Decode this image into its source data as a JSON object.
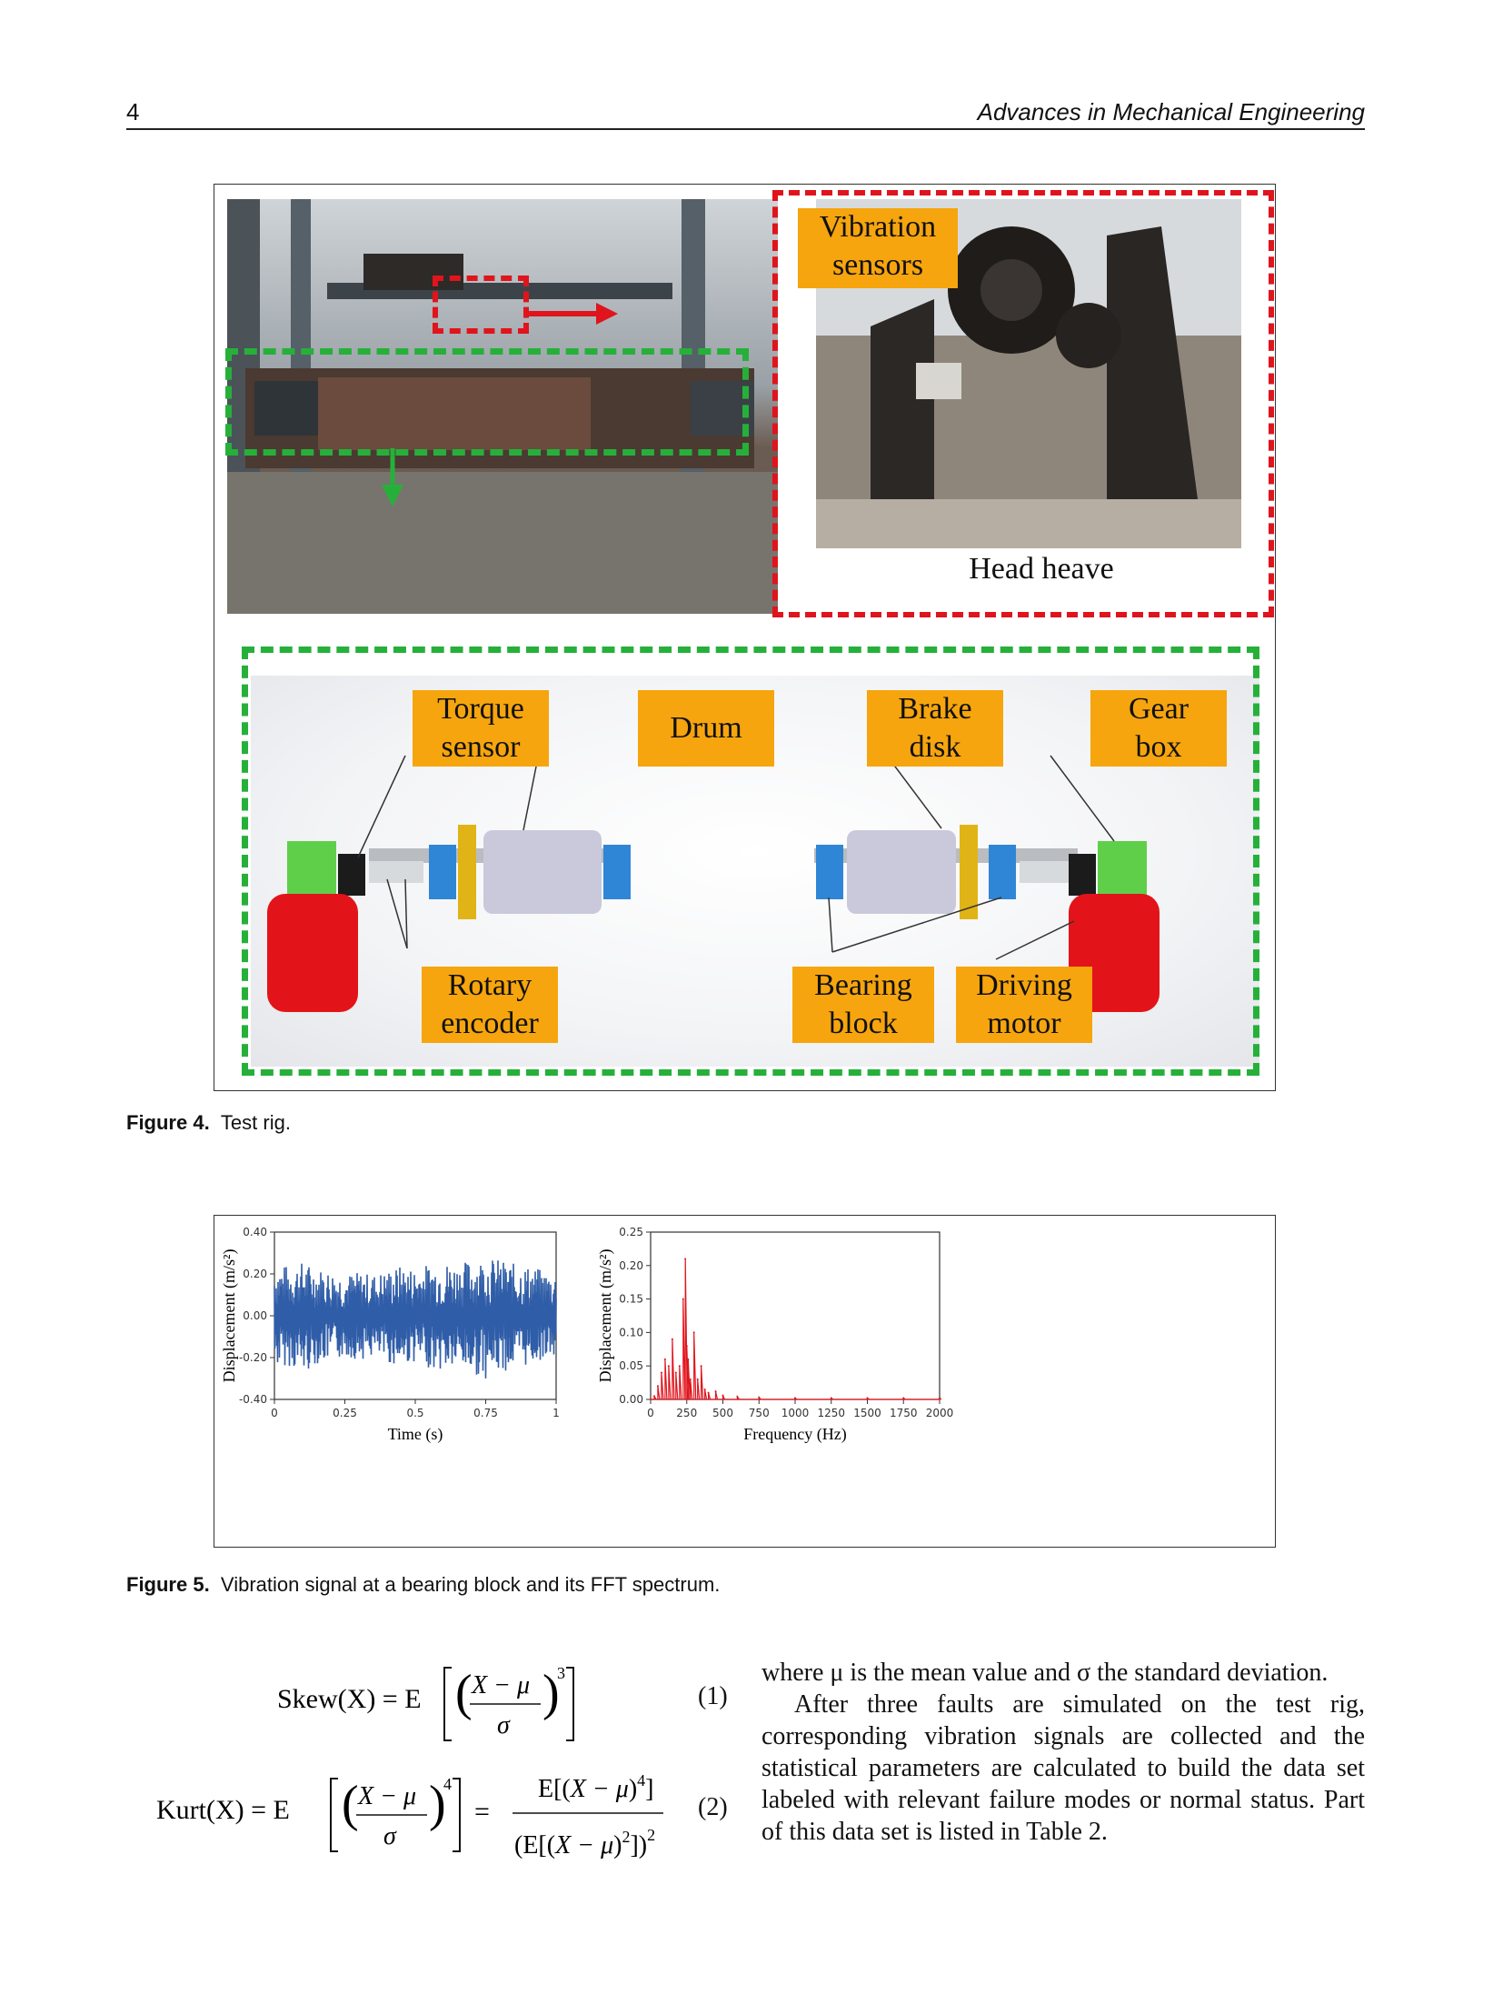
{
  "header": {
    "page_number": "4",
    "journal": "Advances in Mechanical Engineering"
  },
  "figure4": {
    "labels": {
      "vibration_sensors_1": "Vibration",
      "vibration_sensors_2": "sensors",
      "head_heave": "Head heave",
      "torque_sensor_1": "Torque",
      "torque_sensor_2": "sensor",
      "drum": "Drum",
      "brake_disk_1": "Brake",
      "brake_disk_2": "disk",
      "gear_box_1": "Gear",
      "gear_box_2": "box",
      "rotary_encoder_1": "Rotary",
      "rotary_encoder_2": "encoder",
      "bearing_block_1": "Bearing",
      "bearing_block_2": "block",
      "driving_motor_1": "Driving",
      "driving_motor_2": "motor"
    },
    "caption_label": "Figure 4.",
    "caption_text": "Test rig."
  },
  "figure5": {
    "caption_label": "Figure 5.",
    "caption_text": "Vibration signal at a bearing block and its FFT spectrum."
  },
  "chart_data": [
    {
      "type": "line",
      "title": "",
      "xlabel": "Time (s)",
      "ylabel": "Displacement (m/s²)",
      "xlim": [
        0,
        1
      ],
      "ylim": [
        -0.4,
        0.4
      ],
      "x_ticks": [
        "0",
        "0.25",
        "0.5",
        "0.75",
        "1"
      ],
      "y_ticks": [
        "0.40",
        "0.20",
        "0.00",
        "-0.20",
        "-0.40"
      ],
      "grid": false,
      "series": [
        {
          "color": "#2f5da8",
          "x": [
            0.0,
            0.05,
            0.1,
            0.15,
            0.2,
            0.25,
            0.3,
            0.35,
            0.4,
            0.45,
            0.5,
            0.55,
            0.6,
            0.65,
            0.7,
            0.75,
            0.8,
            0.85,
            0.9,
            0.95,
            1.0
          ],
          "y_max": [
            0.25,
            0.24,
            0.26,
            0.23,
            0.22,
            0.2,
            0.21,
            0.2,
            0.22,
            0.24,
            0.23,
            0.25,
            0.26,
            0.25,
            0.27,
            0.28,
            0.27,
            0.25,
            0.24,
            0.22,
            0.2
          ],
          "y_min": [
            -0.25,
            -0.24,
            -0.28,
            -0.23,
            -0.22,
            -0.2,
            -0.21,
            -0.2,
            -0.23,
            -0.24,
            -0.22,
            -0.25,
            -0.27,
            -0.25,
            -0.28,
            -0.3,
            -0.27,
            -0.26,
            -0.24,
            -0.21,
            -0.2
          ]
        }
      ]
    },
    {
      "type": "line",
      "title": "",
      "xlabel": "Frequency (Hz)",
      "ylabel": "Displacement (m/s²)",
      "xlim": [
        0,
        2000
      ],
      "ylim": [
        0,
        0.25
      ],
      "x_ticks": [
        "0",
        "250",
        "500",
        "750",
        "1000",
        "1250",
        "1500",
        "1750",
        "2000"
      ],
      "y_ticks": [
        "0.25",
        "0.20",
        "0.15",
        "0.10",
        "0.05",
        "0.00"
      ],
      "grid": false,
      "series": [
        {
          "color": "#e0141c",
          "x": [
            0,
            25,
            50,
            75,
            100,
            125,
            150,
            175,
            200,
            225,
            240,
            250,
            260,
            275,
            300,
            325,
            350,
            375,
            400,
            450,
            500,
            600,
            750,
            1000,
            1250,
            1500,
            1750,
            2000
          ],
          "y": [
            0.0,
            0.005,
            0.02,
            0.04,
            0.06,
            0.05,
            0.09,
            0.04,
            0.05,
            0.15,
            0.21,
            0.08,
            0.06,
            0.03,
            0.1,
            0.03,
            0.05,
            0.015,
            0.01,
            0.012,
            0.006,
            0.004,
            0.003,
            0.002,
            0.002,
            0.002,
            0.002,
            0.002
          ]
        }
      ]
    }
  ],
  "equations": {
    "eq1_number": "(1)",
    "eq2_number": "(2)",
    "skew_lhs": "Skew(X) = E",
    "kurt_lhs": "Kurt(X) = E"
  },
  "body": {
    "para1": "where μ is the mean value and σ the standard deviation.",
    "para2": "After three faults are simulated on the test rig, corresponding vibration signals are collected and the statistical parameters are calculated to build the data set labeled with relevant failure modes or normal status. Part of this data set is listed in Table 2."
  }
}
